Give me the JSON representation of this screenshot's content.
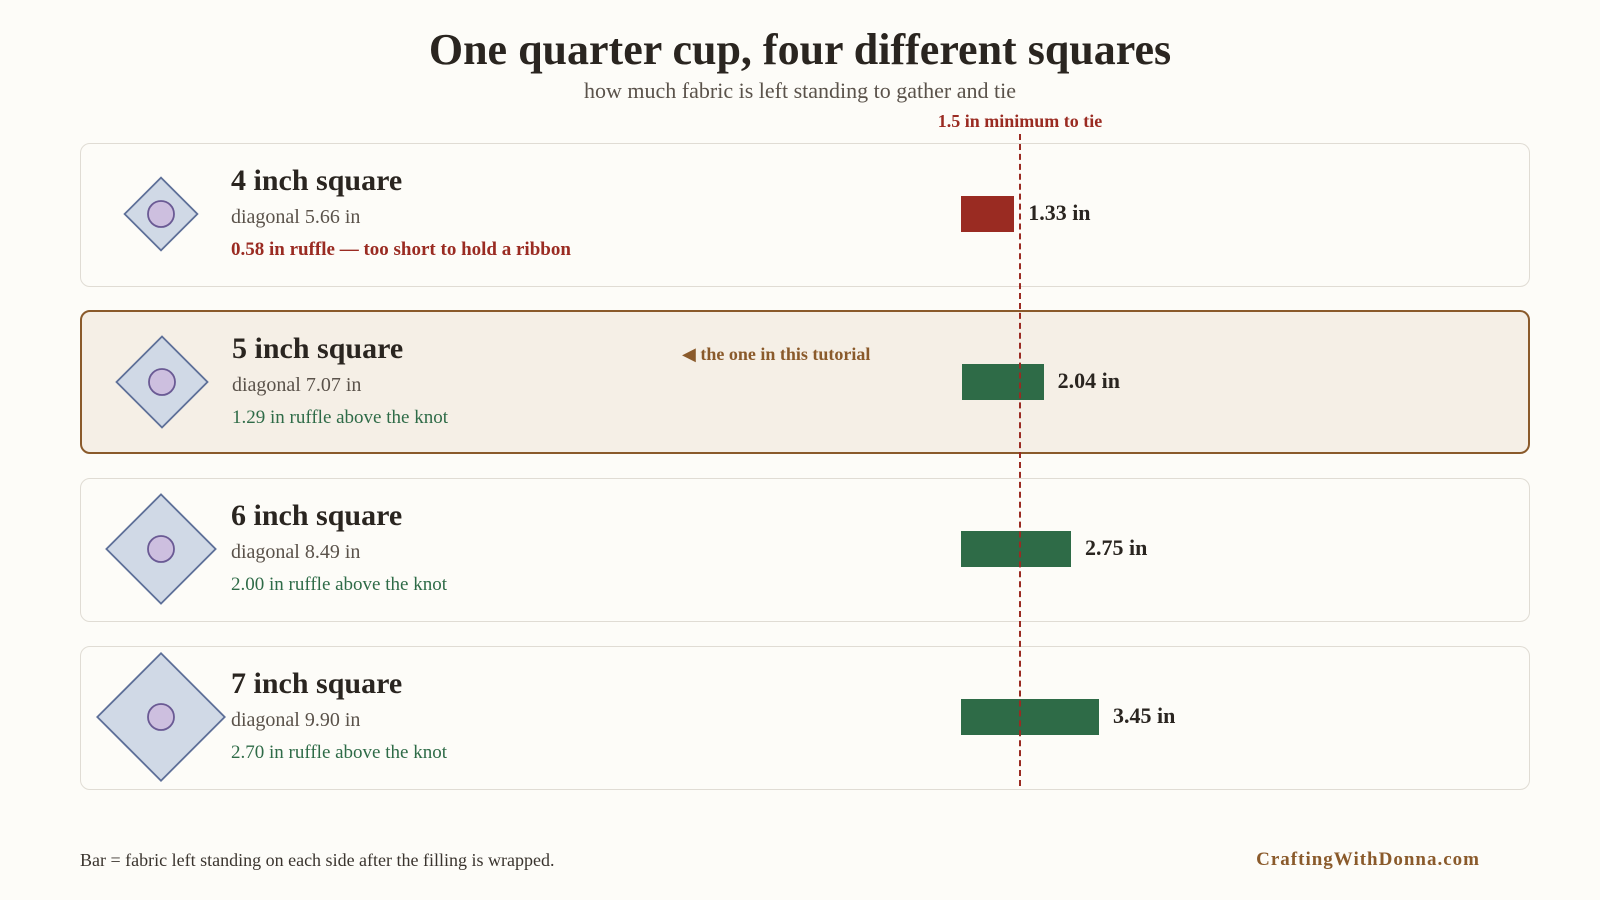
{
  "title": "One quarter cup, four different squares",
  "subtitle": "how much fabric is left standing to gather and tie",
  "threshold": {
    "value": 1.5,
    "label": "1.5 in minimum to tie"
  },
  "tutorial_note": "◀ the one in this tutorial",
  "footer_note": "Bar = fabric left standing on each side after the filling is wrapped.",
  "brand": "CraftingWithDonna.com",
  "colors": {
    "ok": "#2e6b47",
    "too_short": "#9a2b22",
    "highlight_border": "#8a5a2b",
    "diamond_fill": "#d0d9e6",
    "diamond_stroke": "#5d6f98",
    "filling_fill": "#cdbfdf",
    "filling_stroke": "#6a5a94"
  },
  "rows": [
    {
      "name": "4 inch square",
      "diagonal": "diagonal 5.66 in",
      "note": "0.58 in ruffle — too short to hold a ribbon",
      "value_label": "1.33 in",
      "status": "too_short",
      "highlight": false
    },
    {
      "name": "5 inch square",
      "diagonal": "diagonal 7.07 in",
      "note": "1.29 in ruffle above the knot",
      "value_label": "2.04 in",
      "status": "ok",
      "highlight": true
    },
    {
      "name": "6 inch square",
      "diagonal": "diagonal 8.49 in",
      "note": "2.00 in ruffle above the knot",
      "value_label": "2.75 in",
      "status": "ok",
      "highlight": false
    },
    {
      "name": "7 inch square",
      "diagonal": "diagonal 9.90 in",
      "note": "2.70 in ruffle above the knot",
      "value_label": "3.45 in",
      "status": "ok",
      "highlight": false
    }
  ],
  "chart_data": {
    "type": "bar",
    "orientation": "horizontal",
    "title": "One quarter cup, four different squares",
    "subtitle": "how much fabric is left standing to gather and tie",
    "categories": [
      "4 inch square",
      "5 inch square",
      "6 inch square",
      "7 inch square"
    ],
    "values": [
      1.33,
      2.04,
      2.75,
      3.45
    ],
    "unit": "in",
    "reference_line": {
      "value": 1.5,
      "label": "1.5 in minimum to tie"
    }
  }
}
